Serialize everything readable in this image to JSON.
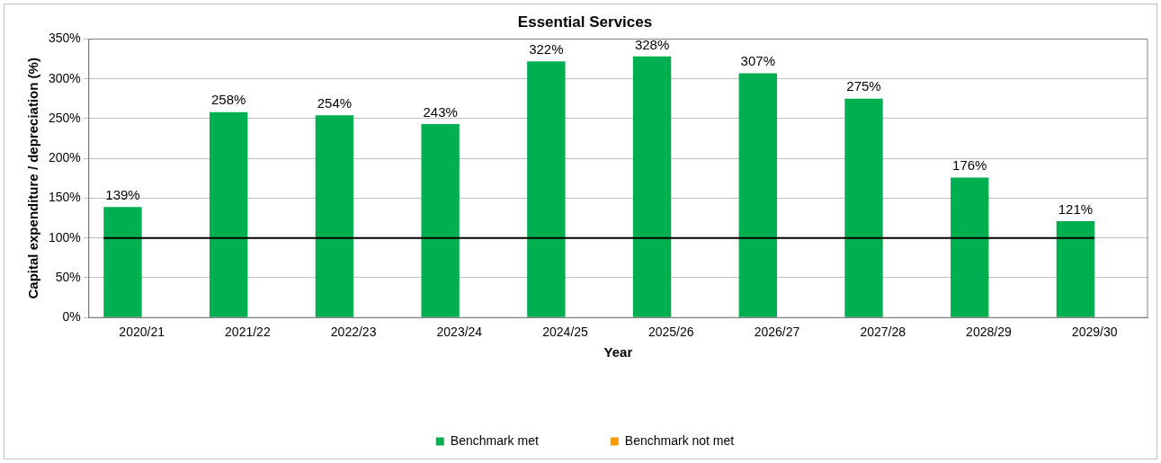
{
  "chart_data": {
    "type": "bar",
    "title": "Essential Services",
    "xlabel": "Year",
    "ylabel": "Capital expenditure / depreciation (%)",
    "categories": [
      "2020/21",
      "2021/22",
      "2022/23",
      "2023/24",
      "2024/25",
      "2025/26",
      "2026/27",
      "2027/28",
      "2028/29",
      "2029/30"
    ],
    "series": [
      {
        "name": "Benchmark met",
        "color": "#00b050",
        "values": [
          139,
          258,
          254,
          243,
          322,
          328,
          307,
          275,
          176,
          121
        ],
        "value_labels": [
          "139%",
          "258%",
          "254%",
          "243%",
          "322%",
          "328%",
          "307%",
          "275%",
          "176%",
          "121%"
        ]
      },
      {
        "name": "Benchmark not met",
        "color": "#ff9900",
        "values": [
          null,
          null,
          null,
          null,
          null,
          null,
          null,
          null,
          null,
          null
        ]
      }
    ],
    "ylim": [
      0,
      350
    ],
    "yticks": [
      {
        "value": 0,
        "label": "0%"
      },
      {
        "value": 50,
        "label": "50%"
      },
      {
        "value": 100,
        "label": "100%"
      },
      {
        "value": 150,
        "label": "150%"
      },
      {
        "value": 200,
        "label": "200%"
      },
      {
        "value": 250,
        "label": "250%"
      },
      {
        "value": 300,
        "label": "300%"
      },
      {
        "value": 350,
        "label": "350%"
      }
    ],
    "ref_lines": [
      {
        "axis": "y",
        "value": 100,
        "color": "#000000"
      }
    ],
    "grid": "y",
    "legend": "bottom"
  }
}
